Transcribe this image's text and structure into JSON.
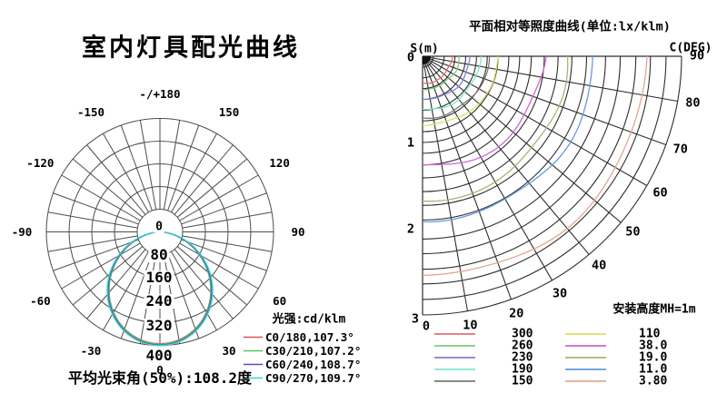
{
  "page": {
    "background": "#ffffff"
  },
  "chart_data": [
    {
      "id": "luminous_intensity_polar",
      "type": "line",
      "subtype": "polar",
      "title": "室内灯具配光曲线",
      "unit_label": "光强:cd/klm",
      "footer": "平均光束角(50%):108.2度",
      "avg_beam_angle_50pct_deg": 108.2,
      "radial_axis": {
        "ticks": [
          "80",
          "160",
          "240",
          "320",
          "400"
        ],
        "center_label": "0",
        "max": 400,
        "units": "cd/klm"
      },
      "angle_axis": {
        "spoke_step_deg": 10,
        "labels": [
          {
            "text": "0",
            "deg": 0
          },
          {
            "text": "30",
            "deg": 30
          },
          {
            "text": "60",
            "deg": 60
          },
          {
            "text": "90",
            "deg": 90
          },
          {
            "text": "120",
            "deg": 120
          },
          {
            "text": "150",
            "deg": 150
          },
          {
            "text": "-/+180",
            "deg": 180
          },
          {
            "text": "-150",
            "deg": -150
          },
          {
            "text": "-120",
            "deg": -120
          },
          {
            "text": "-90",
            "deg": -90
          },
          {
            "text": "-60",
            "deg": -60
          },
          {
            "text": "-30",
            "deg": -30
          }
        ]
      },
      "series": [
        {
          "name": "C0/180,107.3°",
          "plane": "C0/180",
          "beam_angle_deg": 107.3,
          "color": "#e05454",
          "peak_cd_klm": 394,
          "falloff_exp": 1.3
        },
        {
          "name": "C30/210,107.2°",
          "plane": "C30/210",
          "beam_angle_deg": 107.2,
          "color": "#5cc35c",
          "peak_cd_klm": 396,
          "falloff_exp": 1.32
        },
        {
          "name": "C60/240,108.7°",
          "plane": "C60/240",
          "beam_angle_deg": 108.7,
          "color": "#4d4dd6",
          "peak_cd_klm": 399,
          "falloff_exp": 1.28
        },
        {
          "name": "C90/270,109.7°",
          "plane": "C90/270",
          "beam_angle_deg": 109.7,
          "color": "#3ed3d3",
          "peak_cd_klm": 401,
          "falloff_exp": 1.24
        }
      ],
      "grid_color": "#4d4d4d"
    },
    {
      "id": "isolux_fan",
      "type": "line",
      "subtype": "fan",
      "title": "平面相对等照度曲线(单位:lx/klm)",
      "mount_label": "安装高度MH=1m",
      "s_axis": {
        "label": "S(m)",
        "ticks": [
          "0",
          "1",
          "2",
          "3"
        ],
        "max_m": 3
      },
      "c_axis": {
        "label": "C(DEG)",
        "ticks": [
          0,
          10,
          20,
          30,
          40,
          50,
          60,
          70,
          80,
          90
        ]
      },
      "grid_arcs_m": [
        0.125,
        0.25,
        0.375,
        0.5,
        0.625,
        0.75,
        0.875,
        1.0,
        1.125,
        1.26,
        1.41,
        1.57,
        1.73,
        1.9,
        2.12,
        2.29,
        2.47,
        2.64,
        2.82,
        3.0
      ],
      "contours": [
        {
          "value": "300",
          "lx_per_klm": 300,
          "color": "#e07070",
          "s_at_c0_m": 0.31,
          "s_at_c90_m": 0.345,
          "wiggle": 0.012
        },
        {
          "value": "260",
          "lx_per_klm": 260,
          "color": "#80cc80",
          "s_at_c0_m": 0.385,
          "s_at_c90_m": 0.425,
          "wiggle": 0.012
        },
        {
          "value": "230",
          "lx_per_klm": 230,
          "color": "#8080d8",
          "s_at_c0_m": 0.5,
          "s_at_c90_m": 0.55,
          "wiggle": 0.012
        },
        {
          "value": "190",
          "lx_per_klm": 190,
          "color": "#7fe6d2",
          "s_at_c0_m": 0.615,
          "s_at_c90_m": 0.68,
          "wiggle": 0.015
        },
        {
          "value": "150",
          "lx_per_klm": 150,
          "color": "#787878",
          "s_at_c0_m": 0.715,
          "s_at_c90_m": 0.775,
          "wiggle": 0.015
        },
        {
          "value": "110",
          "lx_per_klm": 110,
          "color": "#dede62",
          "s_at_c0_m": 0.8,
          "s_at_c90_m": 0.875,
          "wiggle": 0.02
        },
        {
          "value": "38.0",
          "lx_per_klm": 38,
          "color": "#cf66cf",
          "s_at_c0_m": 1.26,
          "s_at_c90_m": 1.43,
          "wiggle": 0.045
        },
        {
          "value": "19.0",
          "lx_per_klm": 19,
          "color": "#b0b078",
          "s_at_c0_m": 1.68,
          "s_at_c90_m": 1.68,
          "wiggle": 0.03
        },
        {
          "value": "11.0",
          "lx_per_klm": 11,
          "color": "#6699dd",
          "s_at_c0_m": 1.92,
          "s_at_c90_m": 1.97,
          "wiggle": 0.03
        },
        {
          "value": "3.80",
          "lx_per_klm": 3.8,
          "color": "#dfa98e",
          "s_at_c0_m": 2.54,
          "s_at_c90_m": 2.6,
          "wiggle": 0.035
        }
      ],
      "grid_color": "#2e2e2e"
    }
  ]
}
